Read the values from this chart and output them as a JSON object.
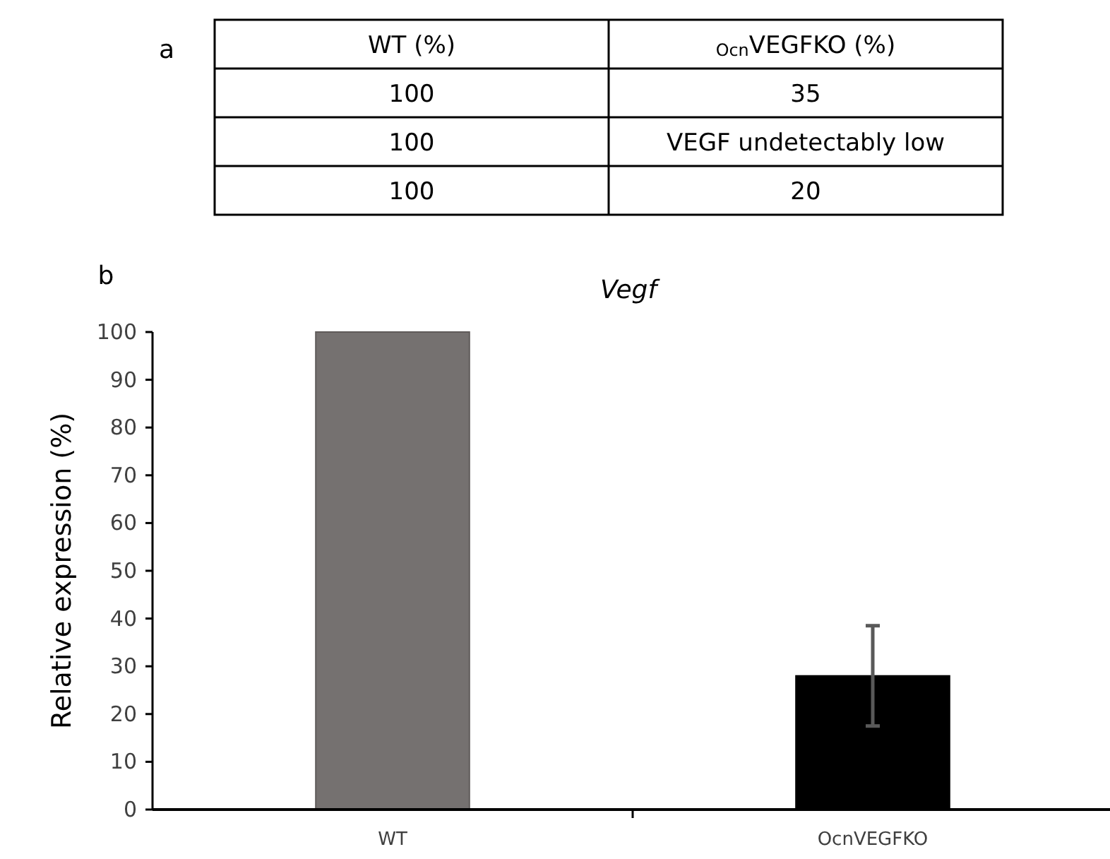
{
  "chart_data": [
    {
      "type": "other",
      "annotations": [
        "a",
        "WT (%)",
        "$_{Ocn}$VEGFKO (%)",
        "100",
        "35",
        "100",
        "VEGF undetectably low",
        "100",
        "20"
      ]
    },
    {
      "type": "bar",
      "title": "Vegf",
      "annotations": [
        "b"
      ],
      "ylabel": "Relative expression (%)",
      "categories": [
        "WT",
        "OcnVEGFKO"
      ],
      "values": [
        100,
        28
      ],
      "colors": [
        "#757170",
        "#000000"
      ],
      "errors": [
        null,
        10.5
      ],
      "ylim": [
        0,
        100
      ],
      "yticks": [
        0,
        10,
        20,
        30,
        40,
        50,
        60,
        70,
        80,
        90,
        100
      ]
    }
  ]
}
